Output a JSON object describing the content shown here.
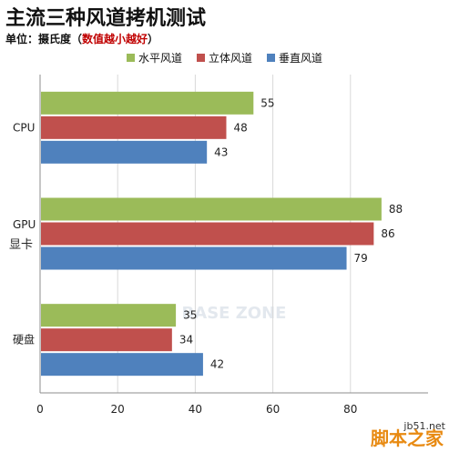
{
  "title": "主流三种风道拷机测试",
  "subtitle": {
    "prefix": "单位：摄氏度（",
    "note": "数值越小越好",
    "suffix": "）"
  },
  "watermark": {
    "domain": "jb51.net",
    "brand": "脚本之家",
    "faint_text": "BASE ZONE"
  },
  "colors": {
    "水平风道": "#9bbb59",
    "立体风道": "#c0504d",
    "垂直风道": "#4f81bd"
  },
  "chart_data": {
    "type": "bar",
    "orientation": "horizontal",
    "categories": [
      "CPU",
      "GPU",
      "硬盘"
    ],
    "category_sublabels": [
      "",
      "显卡",
      ""
    ],
    "series": [
      {
        "name": "水平风道",
        "values": [
          55,
          88,
          35
        ]
      },
      {
        "name": "立体风道",
        "values": [
          48,
          86,
          34
        ]
      },
      {
        "name": "垂直风道",
        "values": [
          43,
          79,
          42
        ]
      }
    ],
    "xlim": [
      0,
      100
    ],
    "x_ticks": [
      0,
      20,
      40,
      60,
      80
    ],
    "grid": true,
    "legend_position": "top",
    "data_labels": true
  }
}
